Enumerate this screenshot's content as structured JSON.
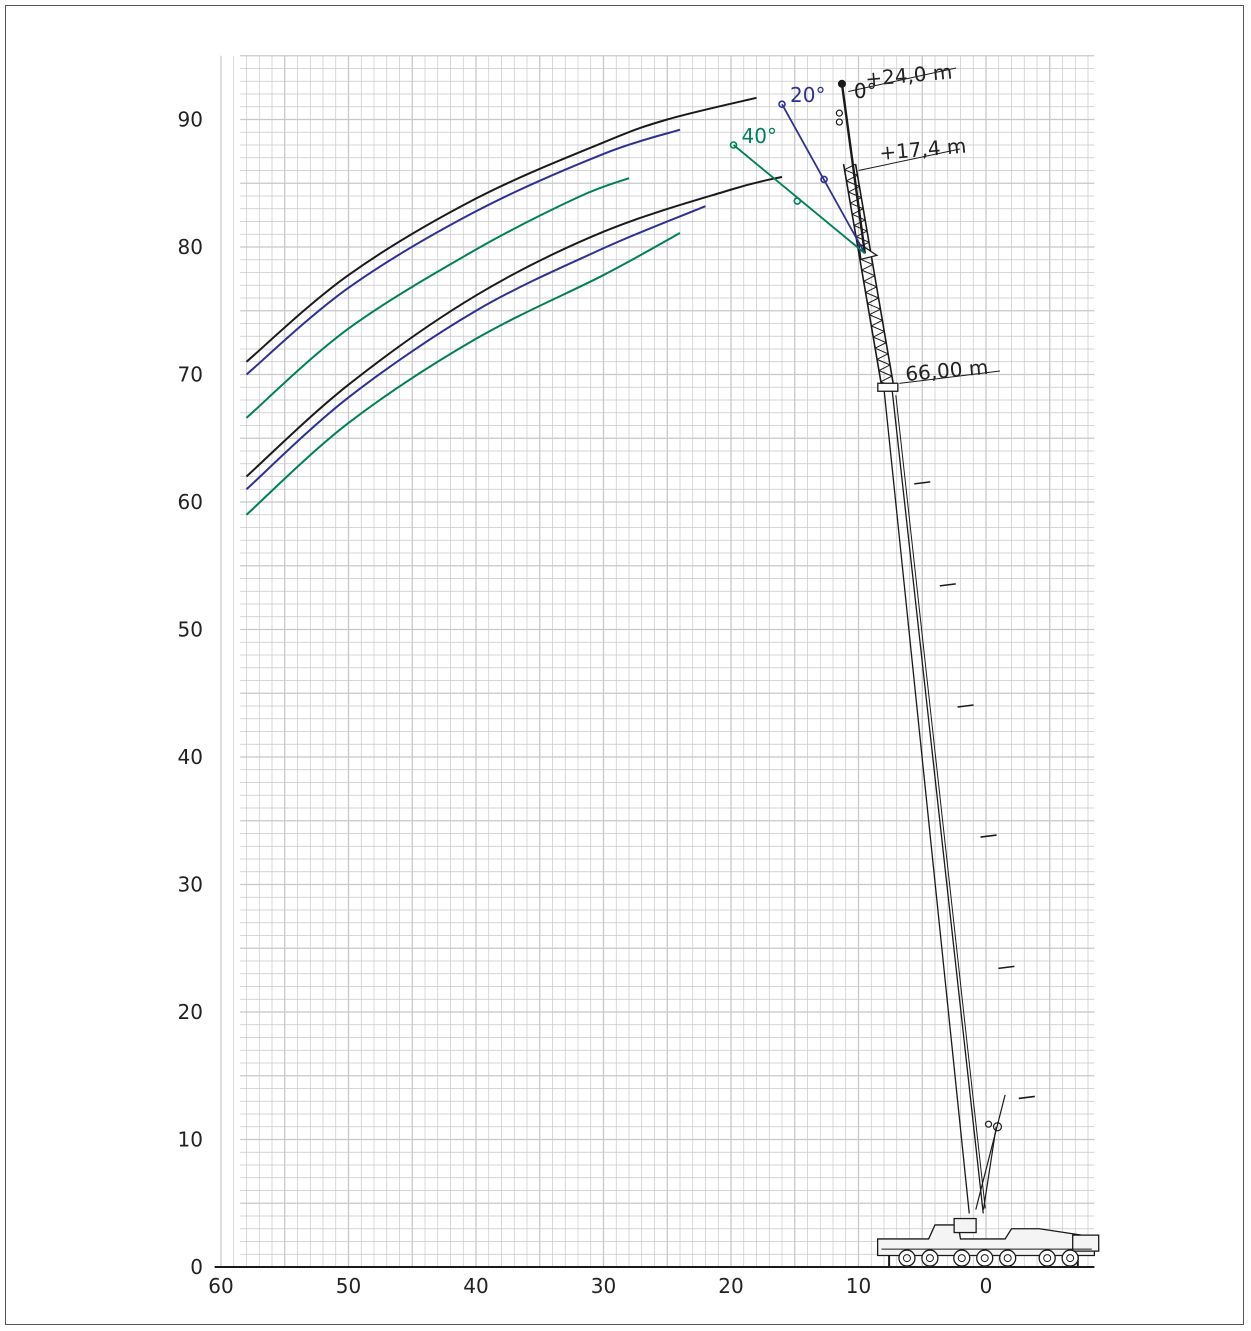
{
  "chart_data": {
    "type": "line",
    "title": "",
    "xlabel": "",
    "ylabel": "",
    "xlim": [
      60,
      -9
    ],
    "ylim": [
      0,
      95
    ],
    "x_ticks": [
      "60",
      "50",
      "40",
      "30",
      "20",
      "10",
      "0"
    ],
    "y_ticks": [
      "0",
      "10",
      "20",
      "30",
      "40",
      "50",
      "60",
      "70",
      "80",
      "90"
    ],
    "grid": true,
    "colors": {
      "black": "#1a1a1a",
      "blue": "#2e3192",
      "green": "#00805a",
      "grid": "#c8c8c8"
    },
    "series": [
      {
        "color": "black",
        "x": [
          58,
          50,
          40,
          30,
          25,
          18
        ],
        "y": [
          71,
          77.8,
          83.8,
          88.2,
          90,
          91.7
        ]
      },
      {
        "color": "blue",
        "x": [
          58,
          50,
          40,
          30,
          24
        ],
        "y": [
          70,
          76.8,
          82.8,
          87.3,
          89.2
        ]
      },
      {
        "color": "green",
        "x": [
          58,
          50,
          40,
          32,
          28
        ],
        "y": [
          66.6,
          73.6,
          79.8,
          83.9,
          85.4
        ]
      },
      {
        "color": "black",
        "x": [
          58,
          50,
          40,
          30,
          20,
          16
        ],
        "y": [
          62,
          69.2,
          76.2,
          81.2,
          84.5,
          85.5
        ]
      },
      {
        "color": "blue",
        "x": [
          58,
          50,
          40,
          30,
          22
        ],
        "y": [
          61,
          68.2,
          75,
          79.9,
          83.2
        ]
      },
      {
        "color": "green",
        "x": [
          58,
          50,
          40,
          30,
          24
        ],
        "y": [
          59,
          66.2,
          72.8,
          77.8,
          81.1
        ]
      }
    ],
    "jib_angles": [
      {
        "label": "0°",
        "color": "black",
        "tip": [
          11.3,
          92.8
        ],
        "mid": [
          11.5,
          86.0
        ]
      },
      {
        "label": "20°",
        "color": "blue",
        "tip": [
          16.0,
          91.2
        ],
        "mid": [
          12.7,
          85.3
        ]
      },
      {
        "label": "40°",
        "color": "green",
        "tip": [
          19.8,
          88.0
        ],
        "mid": [
          14.8,
          83.6
        ]
      }
    ],
    "jib_foot": [
      9.5,
      79.5
    ],
    "main_boom_head": [
      7.7,
      69.0
    ],
    "callouts": [
      "+24,0 m",
      "+17,4 m",
      "66,00 m"
    ]
  }
}
